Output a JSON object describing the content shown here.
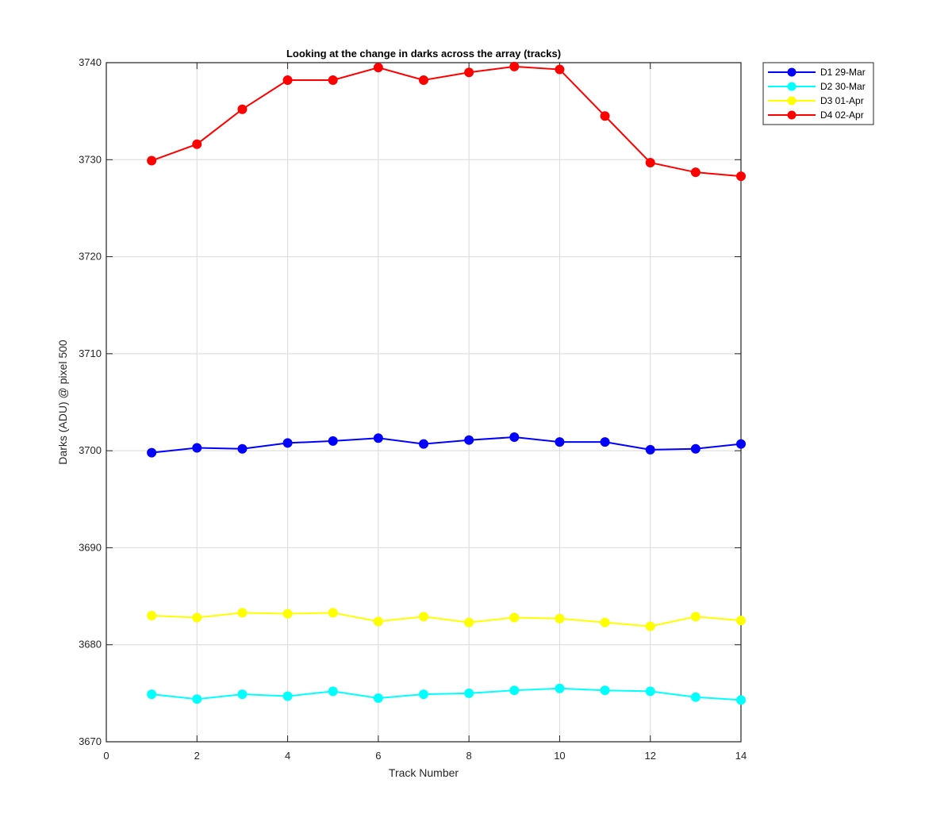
{
  "chart_data": {
    "type": "line",
    "title": "Looking at the change in darks across the array (tracks)",
    "xlabel": "Track Number",
    "ylabel": "Darks (ADU) @ pixel 500",
    "xlim": [
      0,
      14
    ],
    "ylim": [
      3670,
      3740
    ],
    "xticks": [
      0,
      2,
      4,
      6,
      8,
      10,
      12,
      14
    ],
    "yticks": [
      3670,
      3680,
      3690,
      3700,
      3710,
      3720,
      3730,
      3740
    ],
    "grid": true,
    "legend_position": "top-right outside",
    "x": [
      1,
      2,
      3,
      4,
      5,
      6,
      7,
      8,
      9,
      10,
      11,
      12,
      13,
      14
    ],
    "series": [
      {
        "name": "D1 29-Mar",
        "color": "#0000ff",
        "values": [
          3699.8,
          3700.3,
          3700.2,
          3700.8,
          3701.0,
          3701.3,
          3700.7,
          3701.1,
          3701.4,
          3700.9,
          3700.9,
          3700.1,
          3700.2,
          3700.7
        ]
      },
      {
        "name": "D2 30-Mar",
        "color": "#00ffff",
        "values": [
          3674.9,
          3674.4,
          3674.9,
          3674.7,
          3675.2,
          3674.5,
          3674.9,
          3675.0,
          3675.3,
          3675.5,
          3675.3,
          3675.2,
          3674.6,
          3674.3
        ]
      },
      {
        "name": "D3 01-Apr",
        "color": "#ffff00",
        "values": [
          3683.0,
          3682.8,
          3683.3,
          3683.2,
          3683.3,
          3682.4,
          3682.9,
          3682.3,
          3682.8,
          3682.7,
          3682.3,
          3681.9,
          3682.9,
          3682.5
        ]
      },
      {
        "name": "D4 02-Apr",
        "color": "#ff0000",
        "values": [
          3729.9,
          3731.6,
          3735.2,
          3738.2,
          3738.2,
          3739.5,
          3738.2,
          3739.0,
          3739.6,
          3739.3,
          3734.5,
          3729.7,
          3728.7,
          3728.3
        ]
      }
    ]
  }
}
